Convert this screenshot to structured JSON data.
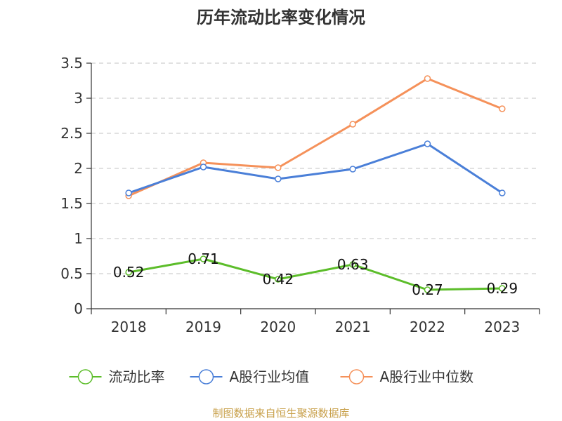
{
  "chart_data": {
    "type": "line",
    "title": "历年流动比率变化情况",
    "categories": [
      "2018",
      "2019",
      "2020",
      "2021",
      "2022",
      "2023"
    ],
    "ylim": [
      0,
      3.5
    ],
    "yticks": [
      "0",
      "0.5",
      "1",
      "1.5",
      "2",
      "2.5",
      "3",
      "3.5"
    ],
    "grid": true,
    "legend_position": "bottom",
    "series": [
      {
        "name": "流动比率",
        "color": "#5cbd2a",
        "values": [
          0.52,
          0.71,
          0.42,
          0.63,
          0.27,
          0.29
        ],
        "labels": [
          "0.52",
          "0.71",
          "0.42",
          "0.63",
          "0.27",
          "0.29"
        ]
      },
      {
        "name": "A股行业均值",
        "color": "#4a7fd8",
        "values": [
          1.65,
          2.02,
          1.85,
          1.99,
          2.35,
          1.65
        ]
      },
      {
        "name": "A股行业中位数",
        "color": "#f5915a",
        "values": [
          1.61,
          2.08,
          2.01,
          2.63,
          3.28,
          2.85
        ]
      }
    ],
    "source": "制图数据来自恒生聚源数据库"
  }
}
